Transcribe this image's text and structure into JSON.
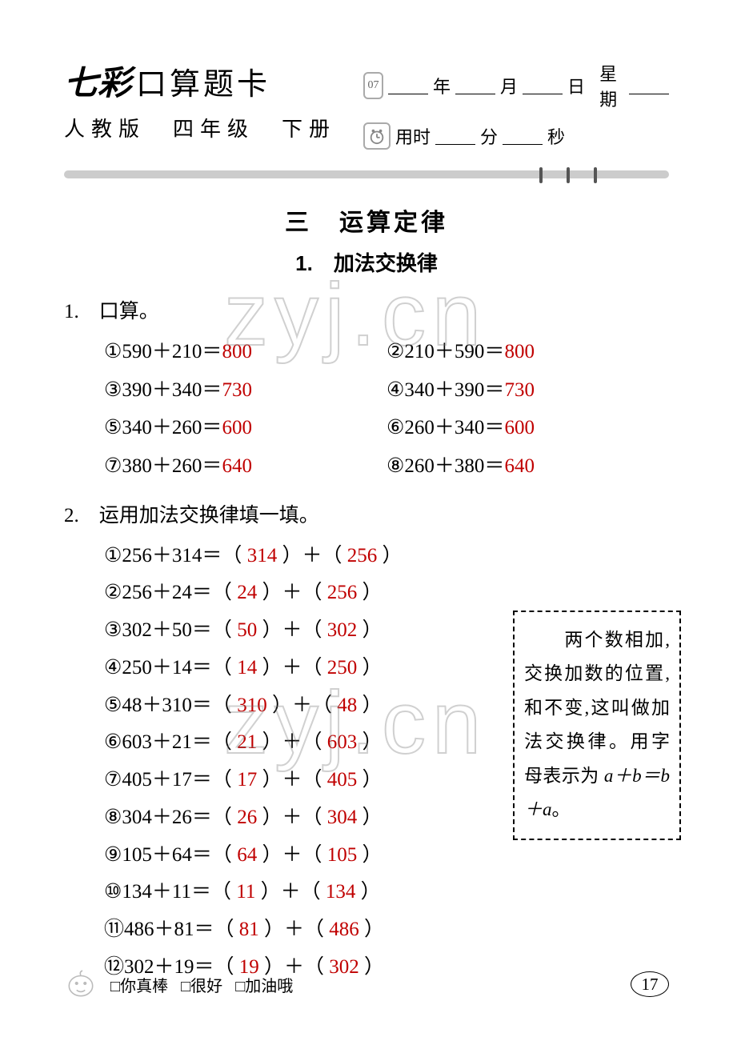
{
  "header": {
    "brand": "七彩",
    "title_suffix": "口算题卡",
    "subtitle": "人教版　四年级　下册",
    "calendar_num": "07",
    "year_label": "年",
    "month_label": "月",
    "day_label": "日",
    "weekday_label": "星期",
    "time_prefix": "用时",
    "min_label": "分",
    "sec_label": "秒"
  },
  "chapter": "三　运算定律",
  "section": "1.　加法交换律",
  "q1": {
    "label": "1.　口算。",
    "items": [
      {
        "n": "①",
        "expr": "590＋210＝",
        "ans": "800"
      },
      {
        "n": "②",
        "expr": "210＋590＝",
        "ans": "800"
      },
      {
        "n": "③",
        "expr": "390＋340＝",
        "ans": "730"
      },
      {
        "n": "④",
        "expr": "340＋390＝",
        "ans": "730"
      },
      {
        "n": "⑤",
        "expr": "340＋260＝",
        "ans": "600"
      },
      {
        "n": "⑥",
        "expr": "260＋340＝",
        "ans": "600"
      },
      {
        "n": "⑦",
        "expr": "380＋260＝",
        "ans": "640"
      },
      {
        "n": "⑧",
        "expr": "260＋380＝",
        "ans": "640"
      }
    ]
  },
  "q2": {
    "label": "2.　运用加法交换律填一填。",
    "items": [
      {
        "n": "①",
        "lhs": "256＋314＝",
        "a": "314",
        "b": "256"
      },
      {
        "n": "②",
        "lhs": "256＋24＝",
        "a": "24",
        "b": "256"
      },
      {
        "n": "③",
        "lhs": "302＋50＝",
        "a": "50",
        "b": "302"
      },
      {
        "n": "④",
        "lhs": "250＋14＝",
        "a": "14",
        "b": "250"
      },
      {
        "n": "⑤",
        "lhs": "48＋310＝",
        "a": "310",
        "b": "48"
      },
      {
        "n": "⑥",
        "lhs": "603＋21＝",
        "a": "21",
        "b": "603"
      },
      {
        "n": "⑦",
        "lhs": "405＋17＝",
        "a": "17",
        "b": "405"
      },
      {
        "n": "⑧",
        "lhs": "304＋26＝",
        "a": "26",
        "b": "304"
      },
      {
        "n": "⑨",
        "lhs": "105＋64＝",
        "a": "64",
        "b": "105"
      },
      {
        "n": "⑩",
        "lhs": "134＋11＝",
        "a": "11",
        "b": "134"
      },
      {
        "n": "⑪",
        "lhs": "486＋81＝",
        "a": "81",
        "b": "486"
      },
      {
        "n": "⑫",
        "lhs": "302＋19＝",
        "a": "19",
        "b": "302"
      }
    ]
  },
  "info_box_1": "　　两个数相加,交换加数的位置,和不变,这叫做加法交换律。用字母表示为",
  "info_box_2": " a＋b＝b＋a",
  "info_box_3": "。",
  "footer": {
    "opt1": "□你真棒",
    "opt2": "□很好",
    "opt3": "□加油哦",
    "page": "17"
  },
  "watermark": "zyj.cn",
  "colors": {
    "answer": "#c00000",
    "divider": "#cccccc",
    "text": "#000000",
    "bg": "#ffffff"
  }
}
